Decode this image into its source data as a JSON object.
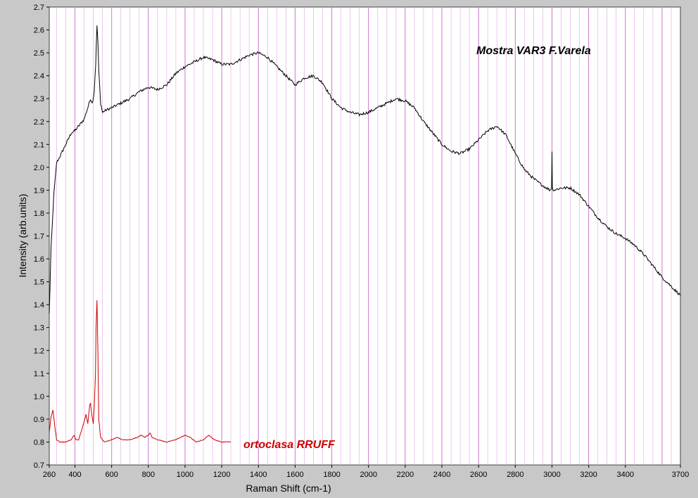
{
  "chart_data": {
    "type": "line",
    "xlabel": "Raman Shift (cm-1)",
    "ylabel": "Intensity (arb.units)",
    "xlim": [
      260,
      3700
    ],
    "ylim": [
      0.7,
      2.7
    ],
    "grid": "vertical",
    "colors": {
      "background": "#ffffff",
      "frame": "#c8c8c8",
      "grid": "#dd88dd",
      "sample": "#000000",
      "reference": "#cc0000"
    },
    "x_ticks": [
      "260",
      "400",
      "600",
      "800",
      "1000",
      "1200",
      "1400",
      "1600",
      "1800",
      "2000",
      "2200",
      "2400",
      "2600",
      "2800",
      "3000",
      "3200",
      "3400",
      "3700"
    ],
    "y_ticks": [
      "0.7",
      "0.8",
      "0.9",
      "1.0",
      "1.1",
      "1.2",
      "1.3",
      "1.4",
      "1.5",
      "1.6",
      "1.7",
      "1.8",
      "1.9",
      "2.0",
      "2.1",
      "2.2",
      "2.3",
      "2.4",
      "2.5",
      "2.6",
      "2.7"
    ],
    "annotations": [
      {
        "text": "Mostra VAR3 F.Varela",
        "color": "#000000"
      },
      {
        "text": "ortoclasa RRUFF",
        "color": "#cc0000"
      }
    ],
    "series": [
      {
        "color": "#000000",
        "x": [
          260,
          270,
          285,
          300,
          320,
          350,
          380,
          400,
          430,
          450,
          470,
          485,
          495,
          505,
          513,
          520,
          525,
          530,
          540,
          550,
          570,
          600,
          650,
          700,
          750,
          800,
          850,
          900,
          950,
          1000,
          1050,
          1100,
          1150,
          1200,
          1250,
          1300,
          1350,
          1400,
          1450,
          1500,
          1550,
          1600,
          1650,
          1700,
          1750,
          1800,
          1850,
          1900,
          1950,
          2000,
          2050,
          2100,
          2150,
          2200,
          2250,
          2300,
          2350,
          2400,
          2450,
          2500,
          2550,
          2600,
          2650,
          2700,
          2750,
          2800,
          2850,
          2900,
          2950,
          2990,
          2998,
          3000,
          3002,
          3010,
          3050,
          3100,
          3150,
          3200,
          3250,
          3300,
          3350,
          3400,
          3450,
          3500,
          3550,
          3600,
          3650,
          3700
        ],
        "y": [
          1.36,
          1.65,
          1.88,
          2.02,
          2.05,
          2.1,
          2.15,
          2.16,
          2.19,
          2.21,
          2.26,
          2.3,
          2.28,
          2.33,
          2.45,
          2.62,
          2.55,
          2.42,
          2.28,
          2.24,
          2.25,
          2.26,
          2.28,
          2.3,
          2.33,
          2.35,
          2.34,
          2.36,
          2.41,
          2.44,
          2.46,
          2.48,
          2.47,
          2.45,
          2.45,
          2.47,
          2.49,
          2.5,
          2.48,
          2.44,
          2.4,
          2.36,
          2.39,
          2.4,
          2.37,
          2.3,
          2.26,
          2.24,
          2.23,
          2.24,
          2.26,
          2.28,
          2.3,
          2.29,
          2.26,
          2.2,
          2.15,
          2.1,
          2.07,
          2.06,
          2.08,
          2.12,
          2.16,
          2.18,
          2.14,
          2.06,
          1.99,
          1.95,
          1.92,
          1.9,
          1.91,
          2.07,
          1.91,
          1.9,
          1.91,
          1.91,
          1.88,
          1.83,
          1.78,
          1.74,
          1.71,
          1.69,
          1.66,
          1.62,
          1.57,
          1.52,
          1.48,
          1.44
        ]
      },
      {
        "color": "#cc0000",
        "x": [
          260,
          270,
          280,
          290,
          300,
          320,
          350,
          380,
          395,
          405,
          420,
          440,
          460,
          470,
          480,
          485,
          490,
          500,
          505,
          512,
          515,
          520,
          525,
          530,
          540,
          560,
          600,
          630,
          660,
          700,
          740,
          760,
          780,
          800,
          810,
          820,
          850,
          900,
          950,
          1000,
          1030,
          1060,
          1100,
          1130,
          1160,
          1200,
          1250
        ],
        "y": [
          0.84,
          0.91,
          0.94,
          0.87,
          0.81,
          0.8,
          0.8,
          0.81,
          0.83,
          0.81,
          0.81,
          0.86,
          0.92,
          0.88,
          0.96,
          0.97,
          0.93,
          0.88,
          0.95,
          1.1,
          1.3,
          1.42,
          1.2,
          0.9,
          0.82,
          0.8,
          0.81,
          0.82,
          0.81,
          0.81,
          0.82,
          0.83,
          0.82,
          0.83,
          0.84,
          0.82,
          0.81,
          0.8,
          0.81,
          0.83,
          0.82,
          0.8,
          0.81,
          0.83,
          0.81,
          0.8,
          0.8
        ]
      }
    ]
  }
}
